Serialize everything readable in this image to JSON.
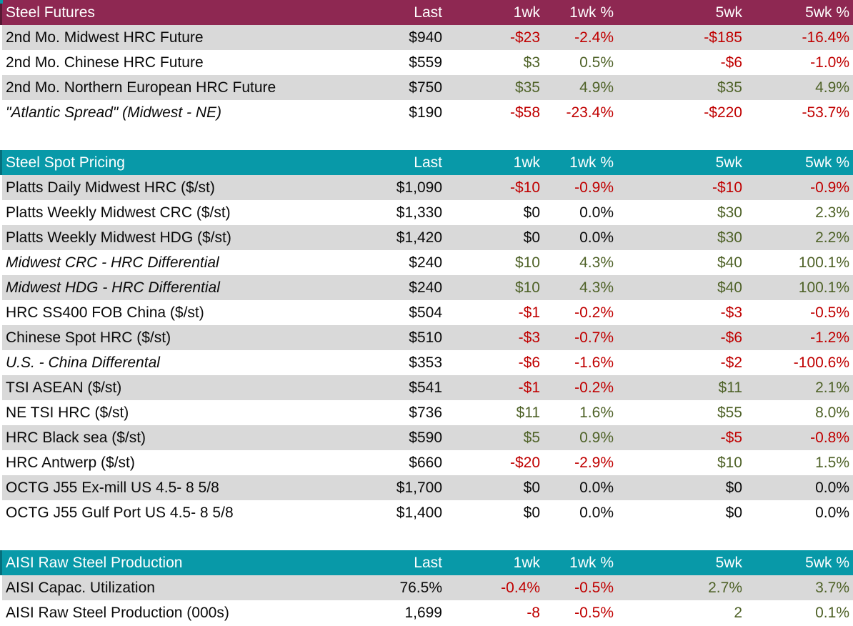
{
  "columns": [
    "Last",
    "1wk",
    "1wk %",
    "5wk",
    "5wk %"
  ],
  "colors": {
    "futures_header_bg": "#8E2852",
    "spot_header_bg": "#0899A8",
    "production_header_bg": "#0899A8",
    "header_text": "#FFFFFF",
    "stripe_row_bg": "#D9D9D9",
    "plain_row_bg": "#FFFFFF",
    "negative_text": "#C00000",
    "positive_text": "#4F6228",
    "neutral_text": "#0A0A0A"
  },
  "chart_data": [
    {
      "type": "table",
      "title": "Steel Futures",
      "accent": "maroon",
      "columns": [
        "Last",
        "1wk",
        "1wk %",
        "5wk",
        "5wk %"
      ],
      "rows": [
        {
          "label": "2nd Mo. Midwest HRC Future",
          "variant": "normal",
          "indent": 0,
          "last": "$940",
          "changes": [
            {
              "v": "-$23",
              "d": "down"
            },
            {
              "v": "-2.4%",
              "d": "down"
            },
            {
              "v": "-$185",
              "d": "down"
            },
            {
              "v": "-16.4%",
              "d": "down"
            }
          ]
        },
        {
          "label": "2nd Mo. Chinese HRC Future",
          "variant": "normal",
          "indent": 0,
          "last": "$559",
          "changes": [
            {
              "v": "$3",
              "d": "up"
            },
            {
              "v": "0.5%",
              "d": "up"
            },
            {
              "v": "-$6",
              "d": "down"
            },
            {
              "v": "-1.0%",
              "d": "down"
            }
          ]
        },
        {
          "label": "2nd Mo. Northern European HRC Future",
          "variant": "normal",
          "indent": 0,
          "last": "$750",
          "changes": [
            {
              "v": "$35",
              "d": "up"
            },
            {
              "v": "4.9%",
              "d": "up"
            },
            {
              "v": "$35",
              "d": "up"
            },
            {
              "v": "4.9%",
              "d": "up"
            }
          ]
        },
        {
          "label": "\"Atlantic Spread\" (Midwest - NE)",
          "variant": "derived",
          "indent": 1,
          "last": "$190",
          "changes": [
            {
              "v": "-$58",
              "d": "down"
            },
            {
              "v": "-23.4%",
              "d": "down"
            },
            {
              "v": "-$220",
              "d": "down"
            },
            {
              "v": "-53.7%",
              "d": "down"
            }
          ]
        }
      ]
    },
    {
      "type": "table",
      "title": "Steel Spot Pricing",
      "accent": "teal",
      "columns": [
        "Last",
        "1wk",
        "1wk %",
        "5wk",
        "5wk %"
      ],
      "rows": [
        {
          "label": "Platts Daily Midwest HRC ($/st)",
          "variant": "normal",
          "indent": 0,
          "last": "$1,090",
          "changes": [
            {
              "v": "-$10",
              "d": "down"
            },
            {
              "v": "-0.9%",
              "d": "down"
            },
            {
              "v": "-$10",
              "d": "down"
            },
            {
              "v": "-0.9%",
              "d": "down"
            }
          ]
        },
        {
          "label": "Platts Weekly Midwest CRC ($/st)",
          "variant": "normal",
          "indent": 0,
          "last": "$1,330",
          "changes": [
            {
              "v": "$0",
              "d": "flat"
            },
            {
              "v": "0.0%",
              "d": "flat"
            },
            {
              "v": "$30",
              "d": "up"
            },
            {
              "v": "2.3%",
              "d": "up"
            }
          ]
        },
        {
          "label": "Platts Weekly Midwest HDG ($/st)",
          "variant": "normal",
          "indent": 0,
          "last": "$1,420",
          "changes": [
            {
              "v": "$0",
              "d": "flat"
            },
            {
              "v": "0.0%",
              "d": "flat"
            },
            {
              "v": "$30",
              "d": "up"
            },
            {
              "v": "2.2%",
              "d": "up"
            }
          ]
        },
        {
          "label": "Midwest CRC - HRC Differential",
          "variant": "derived",
          "indent": 1,
          "last": "$240",
          "changes": [
            {
              "v": "$10",
              "d": "up"
            },
            {
              "v": "4.3%",
              "d": "up"
            },
            {
              "v": "$40",
              "d": "up"
            },
            {
              "v": "100.1%",
              "d": "up"
            }
          ]
        },
        {
          "label": "Midwest HDG - HRC Differential",
          "variant": "derived",
          "indent": 1,
          "last": "$240",
          "changes": [
            {
              "v": "$10",
              "d": "up"
            },
            {
              "v": "4.3%",
              "d": "up"
            },
            {
              "v": "$40",
              "d": "up"
            },
            {
              "v": "100.1%",
              "d": "up"
            }
          ]
        },
        {
          "label": "HRC SS400 FOB China ($/st)",
          "variant": "normal",
          "indent": 0,
          "last": "$504",
          "changes": [
            {
              "v": "-$1",
              "d": "down"
            },
            {
              "v": "-0.2%",
              "d": "down"
            },
            {
              "v": "-$3",
              "d": "down"
            },
            {
              "v": "-0.5%",
              "d": "down"
            }
          ]
        },
        {
          "label": "Chinese Spot HRC ($/st)",
          "variant": "normal",
          "indent": 0,
          "last": "$510",
          "changes": [
            {
              "v": "-$3",
              "d": "down"
            },
            {
              "v": "-0.7%",
              "d": "down"
            },
            {
              "v": "-$6",
              "d": "down"
            },
            {
              "v": "-1.2%",
              "d": "down"
            }
          ]
        },
        {
          "label": "U.S. - China Differental",
          "variant": "derived",
          "indent": 2,
          "last": "$353",
          "changes": [
            {
              "v": "-$6",
              "d": "down"
            },
            {
              "v": "-1.6%",
              "d": "down"
            },
            {
              "v": "-$2",
              "d": "down"
            },
            {
              "v": "-100.6%",
              "d": "down"
            }
          ]
        },
        {
          "label": "TSI ASEAN ($/st)",
          "variant": "normal",
          "indent": 0,
          "last": "$541",
          "changes": [
            {
              "v": "-$1",
              "d": "down"
            },
            {
              "v": "-0.2%",
              "d": "down"
            },
            {
              "v": "$11",
              "d": "up"
            },
            {
              "v": "2.1%",
              "d": "up"
            }
          ]
        },
        {
          "label": "NE TSI HRC ($/st)",
          "variant": "normal",
          "indent": 0,
          "last": "$736",
          "changes": [
            {
              "v": "$11",
              "d": "up"
            },
            {
              "v": "1.6%",
              "d": "up"
            },
            {
              "v": "$55",
              "d": "up"
            },
            {
              "v": "8.0%",
              "d": "up"
            }
          ]
        },
        {
          "label": "HRC Black sea ($/st)",
          "variant": "normal",
          "indent": 0,
          "last": "$590",
          "changes": [
            {
              "v": "$5",
              "d": "up"
            },
            {
              "v": "0.9%",
              "d": "up"
            },
            {
              "v": "-$5",
              "d": "down"
            },
            {
              "v": "-0.8%",
              "d": "down"
            }
          ]
        },
        {
          "label": "HRC Antwerp ($/st)",
          "variant": "normal",
          "indent": 0,
          "last": "$660",
          "changes": [
            {
              "v": "-$20",
              "d": "down"
            },
            {
              "v": "-2.9%",
              "d": "down"
            },
            {
              "v": "$10",
              "d": "up"
            },
            {
              "v": "1.5%",
              "d": "up"
            }
          ]
        },
        {
          "label": "OCTG J55 Ex-mill US 4.5- 8 5/8",
          "variant": "normal",
          "indent": 0,
          "last": "$1,700",
          "changes": [
            {
              "v": "$0",
              "d": "flat"
            },
            {
              "v": "0.0%",
              "d": "flat"
            },
            {
              "v": "$0",
              "d": "flat"
            },
            {
              "v": "0.0%",
              "d": "flat"
            }
          ]
        },
        {
          "label": "OCTG J55 Gulf Port US 4.5- 8 5/8",
          "variant": "normal",
          "indent": 0,
          "last": "$1,400",
          "changes": [
            {
              "v": "$0",
              "d": "flat"
            },
            {
              "v": "0.0%",
              "d": "flat"
            },
            {
              "v": "$0",
              "d": "flat"
            },
            {
              "v": "0.0%",
              "d": "flat"
            }
          ]
        }
      ]
    },
    {
      "type": "table",
      "title": "AISI Raw Steel Production",
      "accent": "teal",
      "columns": [
        "Last",
        "1wk",
        "1wk %",
        "5wk",
        "5wk %"
      ],
      "rows": [
        {
          "label": "AISI Capac. Utilization",
          "variant": "normal",
          "indent": 0,
          "last": "76.5%",
          "changes": [
            {
              "v": "-0.4%",
              "d": "down"
            },
            {
              "v": "-0.5%",
              "d": "down"
            },
            {
              "v": "2.7%",
              "d": "up"
            },
            {
              "v": "3.7%",
              "d": "up"
            }
          ]
        },
        {
          "label": "AISI Raw Steel Production (000s)",
          "variant": "normal",
          "indent": 0,
          "last": "1,699",
          "changes": [
            {
              "v": "-8",
              "d": "down"
            },
            {
              "v": "-0.5%",
              "d": "down"
            },
            {
              "v": "2",
              "d": "up"
            },
            {
              "v": "0.1%",
              "d": "up"
            }
          ]
        }
      ]
    }
  ]
}
